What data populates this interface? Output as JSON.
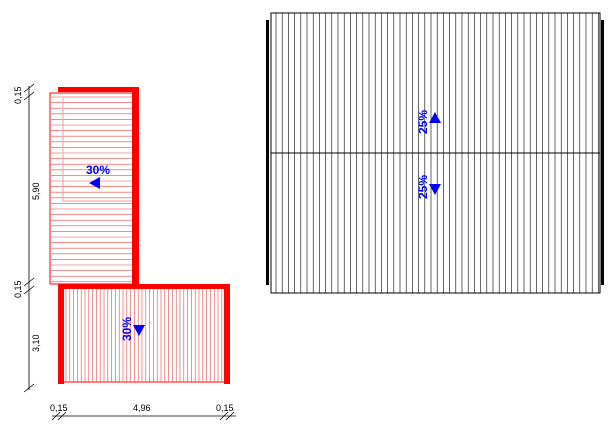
{
  "colors": {
    "roof_red": "#ff0000",
    "roof_red_light": "#ff8080",
    "hatch_red": "#e84a4a",
    "line_black": "#000000",
    "slope_blue": "#0000ff",
    "background": "#ffffff"
  },
  "left_plan": {
    "slopes": {
      "upper": "30%",
      "lower": "30%"
    },
    "vertical_dimensions": [
      "0,15",
      "5,90",
      "0,15",
      "3,10"
    ],
    "horizontal_dimensions": [
      "0,15",
      "4,96",
      "0,15"
    ]
  },
  "right_plan": {
    "slopes": {
      "upper": "25%",
      "lower": "25%"
    }
  },
  "icons": {
    "slope_arrow": "triangle-arrow-icon",
    "dimension_tick": "tick-mark-icon"
  }
}
